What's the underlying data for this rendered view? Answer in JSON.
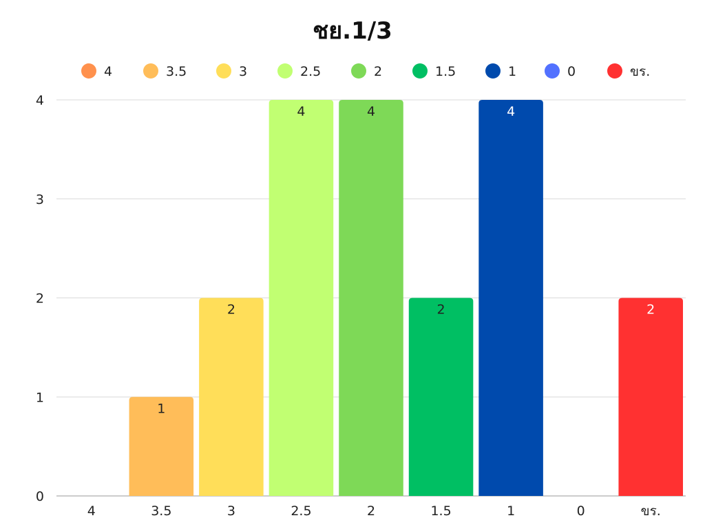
{
  "chart_data": {
    "type": "bar",
    "title": "ชย.1/3",
    "xlabel": "",
    "ylabel": "",
    "ylim": [
      0,
      4
    ],
    "yticks": [
      0,
      1,
      2,
      3,
      4
    ],
    "grid": true,
    "legend_position": "top",
    "categories": [
      "4",
      "3.5",
      "3",
      "2.5",
      "2",
      "1.5",
      "1",
      "0",
      "ขร."
    ],
    "values": [
      0,
      1,
      2,
      4,
      4,
      2,
      4,
      0,
      2
    ],
    "colors": [
      "#ff914d",
      "#ffbd59",
      "#ffde59",
      "#c1ff72",
      "#7ed957",
      "#00bf63",
      "#004aad",
      "#5271ff",
      "#ff3131"
    ],
    "label_colors": [
      "#222222",
      "#222222",
      "#222222",
      "#222222",
      "#222222",
      "#222222",
      "#ffffff",
      "#ffffff",
      "#ffffff"
    ]
  }
}
